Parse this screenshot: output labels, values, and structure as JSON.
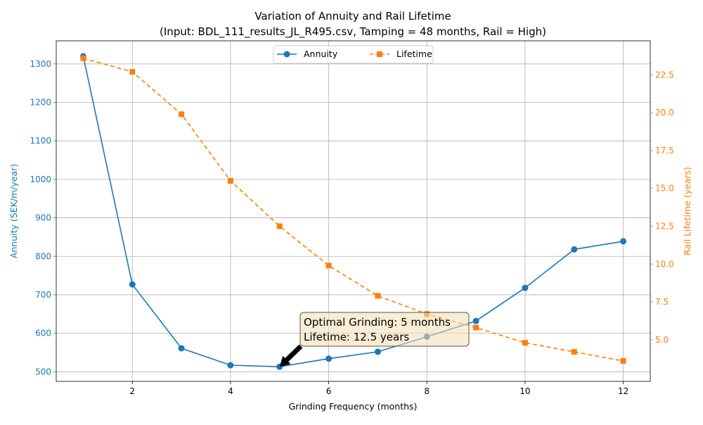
{
  "chart_data": {
    "type": "line",
    "title": "Variation of Annuity and Rail Lifetime",
    "subtitle": "(Input: BDL_111_results_JL_R495.csv, Tamping = 48 months, Rail = High)",
    "xlabel": "Grinding Frequency (months)",
    "ylabel_left": "Annuity (SEK/m/year)",
    "ylabel_right": "Rail Lifetime (years)",
    "x": [
      1,
      2,
      3,
      4,
      5,
      6,
      7,
      8,
      9,
      10,
      11,
      12
    ],
    "xlim": [
      0.45,
      12.55
    ],
    "ylim_left": [
      475,
      1360
    ],
    "ylim_right": [
      2.25,
      24.75
    ],
    "x_ticks": [
      "2",
      "4",
      "6",
      "8",
      "10",
      "12"
    ],
    "y_left_ticks": [
      "500",
      "600",
      "700",
      "800",
      "900",
      "1000",
      "1100",
      "1200",
      "1300"
    ],
    "y_right_ticks": [
      "5.0",
      "7.5",
      "10.0",
      "12.5",
      "15.0",
      "17.5",
      "20.0",
      "22.5"
    ],
    "grid": true,
    "legend_position": "top-center",
    "series": [
      {
        "name": "Annuity",
        "axis": "left",
        "color": "#1f77b4",
        "style": "solid",
        "marker": "circle",
        "values": [
          1320,
          727,
          561,
          517,
          513,
          534,
          552,
          591,
          632,
          718,
          818,
          839
        ]
      },
      {
        "name": "Lifetime",
        "axis": "right",
        "color": "#ff7f0e",
        "style": "dashed",
        "marker": "square",
        "values": [
          23.6,
          22.7,
          19.9,
          15.5,
          12.5,
          9.9,
          7.9,
          6.7,
          5.8,
          4.8,
          4.2,
          3.6
        ]
      }
    ],
    "annotation": {
      "line1": "Optimal Grinding: 5 months",
      "line2": "Lifetime: 12.5 years",
      "x": 5,
      "y": 513
    }
  }
}
